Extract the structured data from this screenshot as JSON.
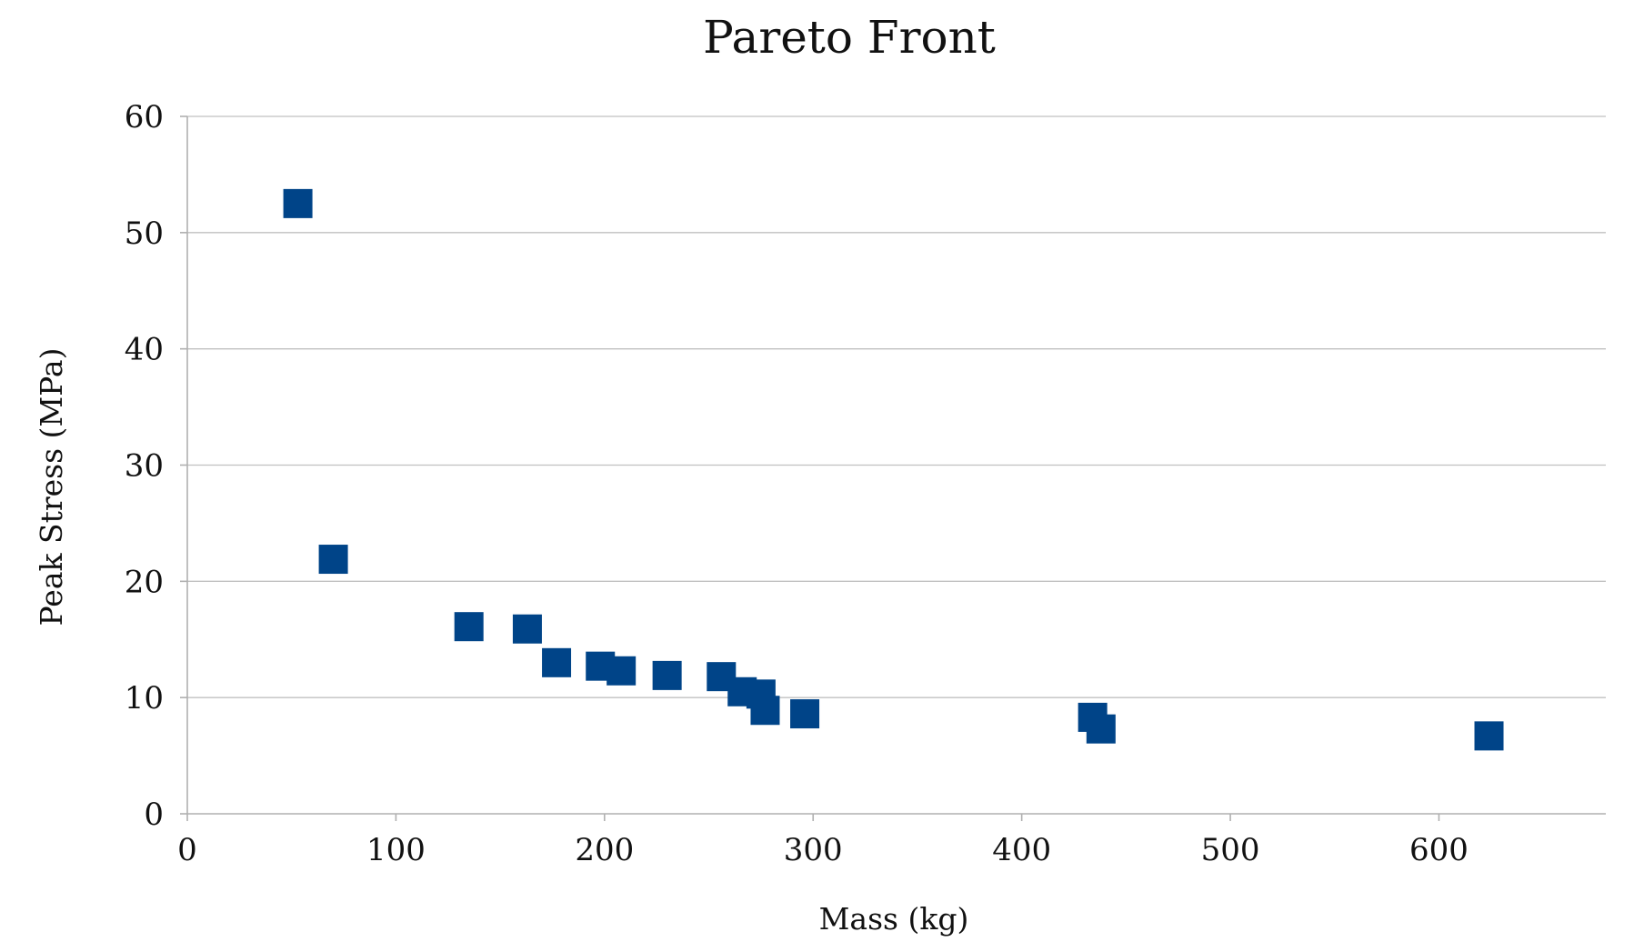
{
  "chart_data": {
    "type": "scatter",
    "title": "Pareto Front",
    "xlabel": "Mass (kg)",
    "ylabel": "Peak Stress (MPa)",
    "xlim": [
      0,
      680
    ],
    "ylim": [
      0,
      60
    ],
    "xticks": [
      0,
      100,
      200,
      300,
      400,
      500,
      600
    ],
    "yticks": [
      0,
      10,
      20,
      30,
      40,
      50,
      60
    ],
    "grid": "horizontal",
    "marker": "square",
    "marker_color": "#004488",
    "grid_color": "#c0c0c0",
    "axis_color": "#b0b0b0",
    "series": [
      {
        "points": [
          {
            "x": 53,
            "y": 52.5
          },
          {
            "x": 70,
            "y": 21.9
          },
          {
            "x": 135,
            "y": 16.1
          },
          {
            "x": 163,
            "y": 15.9
          },
          {
            "x": 177,
            "y": 13.0
          },
          {
            "x": 198,
            "y": 12.7
          },
          {
            "x": 208,
            "y": 12.3
          },
          {
            "x": 230,
            "y": 11.9
          },
          {
            "x": 256,
            "y": 11.8
          },
          {
            "x": 266,
            "y": 10.5
          },
          {
            "x": 275,
            "y": 10.3
          },
          {
            "x": 277,
            "y": 8.9
          },
          {
            "x": 296,
            "y": 8.6
          },
          {
            "x": 434,
            "y": 8.3
          },
          {
            "x": 438,
            "y": 7.3
          },
          {
            "x": 624,
            "y": 6.7
          }
        ]
      }
    ]
  }
}
